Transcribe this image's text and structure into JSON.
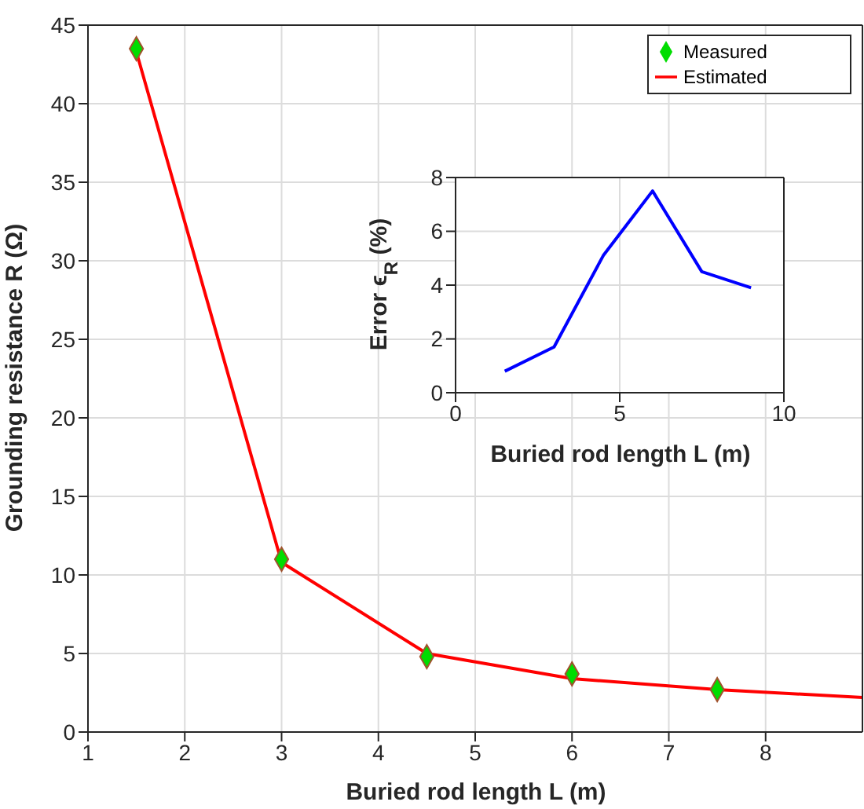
{
  "chart_data": [
    {
      "type": "line",
      "xlabel": "Buried rod length L  (m)",
      "ylabel": "Grounding resistance R  (Ω)",
      "xlim": [
        1,
        9
      ],
      "xticks": [
        1,
        2,
        3,
        4,
        5,
        6,
        7,
        8
      ],
      "ylim": [
        0,
        45
      ],
      "yticks": [
        0,
        5,
        10,
        15,
        20,
        25,
        30,
        35,
        40,
        45
      ],
      "grid": true,
      "legend": "top right",
      "series": [
        {
          "name": "Measured",
          "type": "scatter",
          "marker": "diamond",
          "color": "#00dd00",
          "x": [
            1.5,
            3,
            4.5,
            6,
            7.5
          ],
          "values": [
            43.5,
            11,
            4.8,
            3.7,
            2.7
          ]
        },
        {
          "name": "Estimated",
          "type": "line",
          "marker": "none",
          "color": "#ff0000",
          "x": [
            1.5,
            3,
            4.5,
            6,
            7.5,
            9
          ],
          "values": [
            43.3,
            10.8,
            5.0,
            3.4,
            2.7,
            2.2
          ]
        }
      ]
    },
    {
      "type": "line",
      "xlabel": "Buried rod length L  (m)",
      "ylabel": "Error ϵ$_{R}$  (%)",
      "xlim": [
        0,
        10
      ],
      "xticks": [
        0,
        5,
        10
      ],
      "ylim": [
        0,
        8
      ],
      "yticks": [
        0,
        2,
        4,
        6,
        8
      ],
      "grid": true,
      "series": [
        {
          "type": "line",
          "marker": "none",
          "color": "#0000ff",
          "x": [
            1.5,
            3,
            4.5,
            6,
            7.5,
            9
          ],
          "values": [
            0.8,
            1.7,
            5.1,
            7.5,
            4.5,
            3.9
          ]
        }
      ]
    }
  ]
}
